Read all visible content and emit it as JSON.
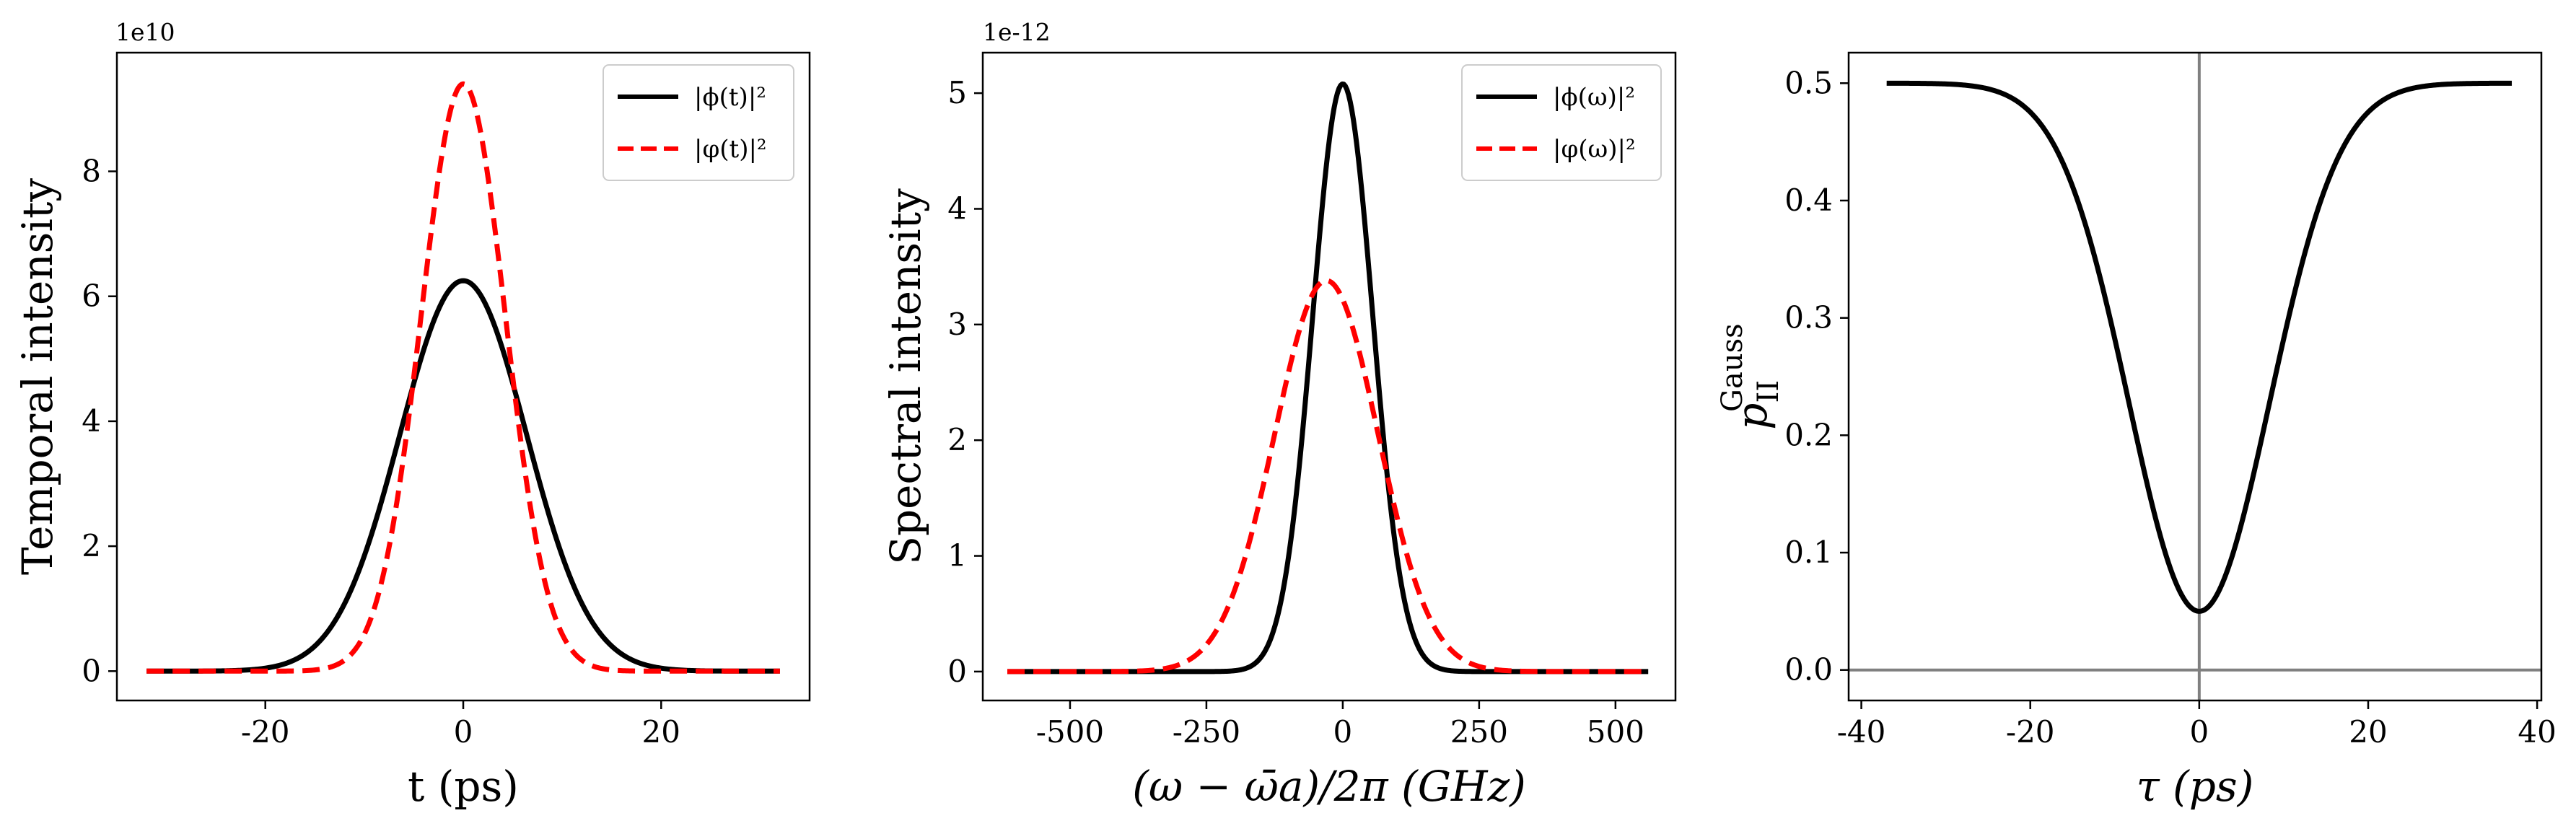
{
  "chart_data": [
    {
      "type": "line",
      "xlabel": "t (ps)",
      "ylabel": "Temporal intensity",
      "y_multiplier": "1e10",
      "xlim": [
        -35,
        35
      ],
      "ylim": [
        -0.47,
        9.9
      ],
      "xticks": [
        -20,
        0,
        20
      ],
      "xtick_labels": [
        "-20",
        "0",
        "20"
      ],
      "yticks": [
        0,
        2,
        4,
        6,
        8
      ],
      "ytick_labels": [
        "0",
        "2",
        "4",
        "6",
        "8"
      ],
      "grid": false,
      "legend_position": "top-right",
      "series": [
        {
          "name": "|ϕ(t)|²",
          "style": "solid",
          "color": "#000000",
          "amplitude": 6.25,
          "center": 0,
          "sigma": 6.4,
          "x_range": [
            -32,
            32
          ]
        },
        {
          "name": "|φ(t)|²",
          "style": "dashed",
          "color": "#ff0000",
          "amplitude": 9.4,
          "center": 0,
          "sigma": 4.25,
          "x_range": [
            -32,
            32
          ]
        }
      ]
    },
    {
      "type": "line",
      "xlabel": "(ω − ω̄a)/2π (GHz)",
      "ylabel": "Spectral intensity",
      "y_multiplier": "1e-12",
      "xlim": [
        -660,
        610
      ],
      "ylim": [
        -0.25,
        5.35
      ],
      "xticks": [
        -500,
        -250,
        0,
        250,
        500
      ],
      "xtick_labels": [
        "-500",
        "-250",
        "0",
        "250",
        "500"
      ],
      "yticks": [
        0,
        1,
        2,
        3,
        4,
        5
      ],
      "ytick_labels": [
        "0",
        "1",
        "2",
        "3",
        "4",
        "5"
      ],
      "grid": false,
      "legend_position": "top-right",
      "series": [
        {
          "name": "|ϕ(ω)|²",
          "style": "solid",
          "color": "#000000",
          "amplitude": 5.08,
          "center": 0,
          "sigma": 55,
          "x_range": [
            -615,
            560
          ]
        },
        {
          "name": "|φ(ω)|²",
          "style": "dashed",
          "color": "#ff0000",
          "amplitude": 3.38,
          "center": -30,
          "sigma": 95,
          "x_range": [
            -615,
            560
          ]
        }
      ]
    },
    {
      "type": "line",
      "xlabel": "τ (ps)",
      "ylabel": "p_II^Gauss",
      "xlim": [
        -41.5,
        40.5
      ],
      "ylim": [
        -0.026,
        0.526
      ],
      "xticks": [
        -40,
        -20,
        0,
        20,
        40
      ],
      "xtick_labels": [
        "-40",
        "-20",
        "0",
        "20",
        "40"
      ],
      "yticks": [
        0.0,
        0.1,
        0.2,
        0.3,
        0.4,
        0.5
      ],
      "ytick_labels": [
        "0.0",
        "0.1",
        "0.2",
        "0.3",
        "0.4",
        "0.5"
      ],
      "grid": false,
      "reference_lines": {
        "x": 0,
        "y": 0,
        "color": "#808080"
      },
      "series": [
        {
          "style": "solid",
          "color": "#000000",
          "baseline": 0.5,
          "dip_depth": 0.45,
          "center": 0,
          "sigma": 8.3,
          "min_value": 0.05,
          "x_range": [
            -37,
            37
          ]
        }
      ]
    }
  ]
}
